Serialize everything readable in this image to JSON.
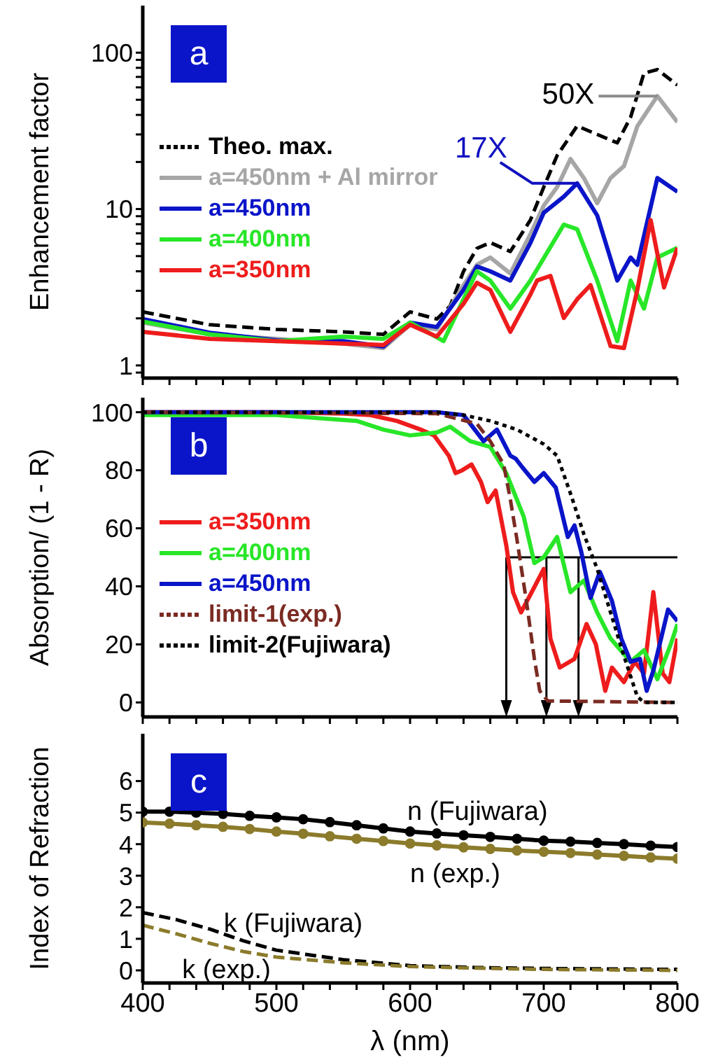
{
  "chart_data": [
    {
      "type": "line",
      "title": "a",
      "ylabel": "Enhancement factor",
      "log": true,
      "legend": "left",
      "tick_labels": "y",
      "xlim": [
        400,
        800
      ],
      "ylim": [
        0.83,
        200
      ],
      "xticks": [
        400,
        {
          "value": 420,
          "label": null
        },
        {
          "value": 440,
          "label": null
        },
        {
          "value": 460,
          "label": null
        },
        {
          "value": 480,
          "label": null
        },
        500,
        {
          "value": 520,
          "label": null
        },
        {
          "value": 540,
          "label": null
        },
        {
          "value": 560,
          "label": null
        },
        {
          "value": 580,
          "label": null
        },
        600,
        {
          "value": 620,
          "label": null
        },
        {
          "value": 640,
          "label": null
        },
        {
          "value": 660,
          "label": null
        },
        {
          "value": 680,
          "label": null
        },
        700,
        {
          "value": 720,
          "label": null
        },
        {
          "value": 740,
          "label": null
        },
        {
          "value": 760,
          "label": null
        },
        {
          "value": 780,
          "label": null
        },
        800
      ],
      "yticks": [
        {
          "value": 0.9,
          "label": null
        },
        1,
        {
          "value": 2,
          "label": null
        },
        {
          "value": 3,
          "label": null
        },
        {
          "value": 4,
          "label": null
        },
        {
          "value": 5,
          "label": null
        },
        {
          "value": 6,
          "label": null
        },
        {
          "value": 7,
          "label": null
        },
        {
          "value": 8,
          "label": null
        },
        {
          "value": 9,
          "label": null
        },
        10,
        {
          "value": 20,
          "label": null
        },
        {
          "value": 30,
          "label": null
        },
        {
          "value": 40,
          "label": null
        },
        {
          "value": 50,
          "label": null
        },
        {
          "value": 60,
          "label": null
        },
        {
          "value": 70,
          "label": null
        },
        {
          "value": 80,
          "label": null
        },
        {
          "value": 90,
          "label": null
        },
        100
      ],
      "annotations": [
        {
          "text": "50X",
          "x": 785,
          "y": 52.8
        },
        {
          "text": "17X",
          "x": 725,
          "y": 14.6
        }
      ],
      "series": [
        {
          "name": "Theo. max.",
          "color": "#000000",
          "line_style": "dashed",
          "x": [
            400,
            450,
            500,
            550,
            580,
            600,
            620,
            630,
            640,
            650,
            660,
            675,
            690,
            700,
            710,
            725,
            740,
            755,
            765,
            775,
            785,
            800
          ],
          "values": [
            2.2,
            1.82,
            1.7,
            1.64,
            1.58,
            2.2,
            1.98,
            2.4,
            4.0,
            5.6,
            6.1,
            5.35,
            8.5,
            13.8,
            22,
            34,
            30,
            26.5,
            38.7,
            74,
            78,
            62
          ]
        },
        {
          "name": "a=450nm + Al mirror",
          "color": "#a6a6a6",
          "line_style": "solid",
          "x": [
            400,
            450,
            500,
            550,
            580,
            600,
            620,
            640,
            650,
            660,
            675,
            690,
            700,
            710,
            720,
            730,
            740,
            750,
            760,
            770,
            785,
            800
          ],
          "values": [
            1.88,
            1.58,
            1.48,
            1.38,
            1.29,
            1.82,
            1.7,
            3.26,
            4.4,
            4.9,
            3.87,
            6.9,
            10.5,
            13.8,
            20.9,
            15.8,
            10.9,
            15.8,
            18.8,
            33.8,
            52.8,
            36
          ]
        },
        {
          "name": "a=450nm",
          "color": "#0a14c8",
          "line_style": "solid",
          "x": [
            400,
            450,
            500,
            550,
            580,
            600,
            620,
            640,
            650,
            660,
            675,
            690,
            700,
            715,
            725,
            740,
            755,
            765,
            770,
            785,
            800
          ],
          "values": [
            1.98,
            1.62,
            1.45,
            1.43,
            1.32,
            1.88,
            1.76,
            3.04,
            4.29,
            4.0,
            3.49,
            6.06,
            9.47,
            12,
            14.6,
            9.1,
            3.49,
            4.9,
            4.4,
            15.8,
            12.9
          ]
        },
        {
          "name": "a=400nm",
          "color": "#28e628",
          "line_style": "solid",
          "x": [
            400,
            450,
            500,
            550,
            580,
            600,
            625,
            640,
            650,
            660,
            675,
            690,
            715,
            725,
            740,
            755,
            765,
            775,
            785,
            800
          ],
          "values": [
            1.91,
            1.58,
            1.43,
            1.53,
            1.48,
            1.88,
            1.43,
            2.65,
            4.0,
            3.49,
            2.31,
            3.49,
            7.96,
            7.43,
            3.49,
            1.43,
            3.49,
            2.31,
            4.9,
            5.65
          ]
        },
        {
          "name": "a=350nm",
          "color": "#ee1c1c",
          "line_style": "solid",
          "x": [
            400,
            450,
            500,
            550,
            580,
            600,
            620,
            640,
            650,
            660,
            675,
            690,
            695,
            705,
            715,
            725,
            735,
            750,
            760,
            770,
            780,
            790,
            800
          ],
          "values": [
            1.64,
            1.48,
            1.43,
            1.38,
            1.35,
            1.82,
            1.53,
            2.48,
            3.38,
            3.04,
            1.64,
            2.84,
            3.49,
            3.74,
            2.01,
            2.65,
            3.26,
            1.33,
            1.29,
            3.04,
            8.5,
            3.15,
            5.65
          ]
        }
      ]
    },
    {
      "type": "line",
      "title": "b",
      "ylabel": "Absorption/ (1 - R)",
      "legend": "left",
      "tick_labels": "y",
      "xlim": [
        400,
        800
      ],
      "ylim": [
        -5,
        105
      ],
      "xticks": [
        400,
        {
          "value": 420,
          "label": null
        },
        {
          "value": 440,
          "label": null
        },
        {
          "value": 460,
          "label": null
        },
        {
          "value": 480,
          "label": null
        },
        500,
        {
          "value": 520,
          "label": null
        },
        {
          "value": 540,
          "label": null
        },
        {
          "value": 560,
          "label": null
        },
        {
          "value": 580,
          "label": null
        },
        600,
        {
          "value": 620,
          "label": null
        },
        {
          "value": 640,
          "label": null
        },
        {
          "value": 660,
          "label": null
        },
        {
          "value": 680,
          "label": null
        },
        700,
        {
          "value": 720,
          "label": null
        },
        {
          "value": 740,
          "label": null
        },
        {
          "value": 760,
          "label": null
        },
        {
          "value": 780,
          "label": null
        },
        800
      ],
      "yticks": [
        0,
        20,
        40,
        60,
        80,
        100
      ],
      "ref_lines": [
        {
          "axis": "y",
          "value": 50
        },
        {
          "axis": "x",
          "value": 672
        },
        {
          "axis": "x",
          "value": 702
        },
        {
          "axis": "x",
          "value": 726
        }
      ],
      "series": [
        {
          "name": "a=350nm",
          "color": "#ee1c1c",
          "line_style": "solid",
          "x": [
            400,
            500,
            550,
            570,
            590,
            608,
            618,
            629,
            634,
            639,
            646,
            653,
            658,
            664,
            672,
            677,
            683,
            691,
            700,
            705,
            712,
            723,
            732,
            739,
            746,
            751,
            760,
            768,
            775,
            782,
            789,
            794,
            800
          ],
          "values": [
            100,
            100,
            99.5,
            99,
            97,
            94,
            92,
            85,
            79,
            80,
            82,
            76,
            69,
            73,
            54,
            38,
            31,
            38,
            46,
            22,
            12,
            15,
            27,
            20,
            4,
            12,
            7,
            14,
            10,
            38,
            10,
            7,
            22
          ]
        },
        {
          "name": "a=400nm",
          "color": "#28e628",
          "line_style": "solid",
          "x": [
            400,
            500,
            560,
            580,
            600,
            620,
            630,
            645,
            660,
            672,
            685,
            693,
            700,
            710,
            720,
            730,
            740,
            750,
            765,
            775,
            785,
            795,
            800
          ],
          "values": [
            99,
            99,
            97,
            94,
            92,
            93,
            95,
            90,
            88,
            79,
            64,
            48,
            50,
            57,
            38,
            42,
            31,
            22,
            14,
            18,
            8,
            20,
            27
          ]
        },
        {
          "name": "a=450nm",
          "color": "#0a14c8",
          "line_style": "solid",
          "x": [
            400,
            620,
            640,
            655,
            665,
            675,
            679,
            684,
            693,
            700,
            709,
            718,
            723,
            728,
            735,
            742,
            751,
            758,
            765,
            772,
            777,
            782,
            793,
            800
          ],
          "values": [
            100,
            100,
            99,
            90,
            94,
            85,
            84,
            81,
            76,
            79,
            74,
            57,
            61,
            52,
            36,
            45,
            35,
            22,
            14,
            15,
            4,
            11,
            32,
            28
          ]
        },
        {
          "name": "limit-1(exp.)",
          "color": "#7b2b22",
          "line_style": "dashed",
          "x": [
            400,
            620,
            650,
            660,
            670,
            675,
            680,
            687,
            693,
            697,
            703,
            800
          ],
          "values": [
            100,
            99.5,
            96,
            90,
            82,
            70,
            56,
            35,
            15,
            4,
            0.5,
            0
          ]
        },
        {
          "name": "limit-2(Fujiwara)",
          "color": "#000000",
          "line_style": "dotted",
          "x": [
            400,
            620,
            640,
            660,
            680,
            700,
            710,
            720,
            730,
            740,
            750,
            760,
            770,
            775,
            800
          ],
          "values": [
            100,
            100,
            99,
            97,
            94,
            89,
            85,
            72,
            58,
            46,
            31,
            16,
            2,
            0,
            0
          ]
        }
      ]
    },
    {
      "type": "line",
      "title": "c",
      "xlabel": "λ (nm)",
      "ylabel": "Index of Refraction",
      "xlim": [
        400,
        800
      ],
      "ylim": [
        -0.4,
        7.5
      ],
      "xticks": [
        400,
        {
          "value": 420,
          "label": null
        },
        {
          "value": 440,
          "label": null
        },
        {
          "value": 460,
          "label": null
        },
        {
          "value": 480,
          "label": null
        },
        500,
        {
          "value": 520,
          "label": null
        },
        {
          "value": 540,
          "label": null
        },
        {
          "value": 560,
          "label": null
        },
        {
          "value": 580,
          "label": null
        },
        600,
        {
          "value": 620,
          "label": null
        },
        {
          "value": 640,
          "label": null
        },
        {
          "value": 660,
          "label": null
        },
        {
          "value": 680,
          "label": null
        },
        700,
        {
          "value": 720,
          "label": null
        },
        {
          "value": 740,
          "label": null
        },
        {
          "value": 760,
          "label": null
        },
        {
          "value": 780,
          "label": null
        },
        800
      ],
      "yticks": [
        0,
        1,
        2,
        3,
        4,
        5,
        6
      ],
      "series": [
        {
          "name": "n (Fujiwara)",
          "color": "#000000",
          "line_style": "solid",
          "marker": "circle",
          "x": [
            400,
            420,
            440,
            460,
            480,
            500,
            520,
            540,
            560,
            580,
            600,
            620,
            640,
            660,
            680,
            700,
            720,
            740,
            760,
            780,
            800
          ],
          "values": [
            5.03,
            5.03,
            5.0,
            4.96,
            4.9,
            4.85,
            4.79,
            4.7,
            4.6,
            4.5,
            4.4,
            4.34,
            4.28,
            4.23,
            4.17,
            4.11,
            4.08,
            4.04,
            4.0,
            3.95,
            3.91
          ]
        },
        {
          "name": "n (exp.)",
          "color": "#8b7b2b",
          "line_style": "solid",
          "marker": "circle",
          "x": [
            400,
            420,
            440,
            460,
            480,
            500,
            520,
            540,
            560,
            580,
            600,
            620,
            640,
            660,
            680,
            700,
            720,
            740,
            760,
            780,
            800
          ],
          "values": [
            4.69,
            4.65,
            4.6,
            4.55,
            4.48,
            4.4,
            4.33,
            4.25,
            4.17,
            4.1,
            4.02,
            3.96,
            3.9,
            3.85,
            3.8,
            3.76,
            3.72,
            3.67,
            3.63,
            3.58,
            3.54
          ]
        },
        {
          "name": "k (Fujiwara)",
          "color": "#000000",
          "line_style": "dashed",
          "x": [
            400,
            425,
            450,
            475,
            500,
            550,
            600,
            650,
            700,
            800
          ],
          "values": [
            1.83,
            1.61,
            1.31,
            0.94,
            0.64,
            0.34,
            0.15,
            0.09,
            0.06,
            0.03
          ]
        },
        {
          "name": "k (exp.)",
          "color": "#8b7b2b",
          "line_style": "dashed",
          "x": [
            400,
            425,
            450,
            475,
            500,
            550,
            600,
            650,
            700,
            800
          ],
          "values": [
            1.43,
            1.16,
            0.86,
            0.6,
            0.42,
            0.24,
            0.12,
            0.07,
            0.03,
            0.0
          ]
        }
      ]
    }
  ]
}
